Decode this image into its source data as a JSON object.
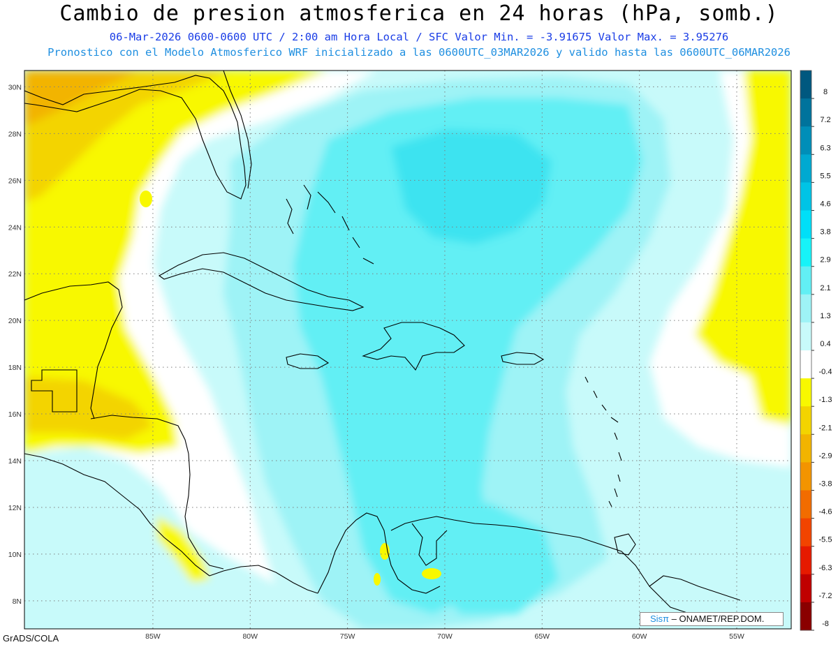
{
  "header": {
    "title": "Cambio de presion atmosferica en 24 horas (hPa, somb.)",
    "line1": "06-Mar-2026   0600-0600 UTC / 2:00 am Hora Local / SFC    Valor Min. = -3.91675  Valor Max. = 3.95276",
    "line2": "Pronostico con el Modelo Atmosferico WRF inicializado a las 0600UTC_03MAR2026 y valido hasta las  0600UTC_06MAR2026"
  },
  "map": {
    "lon_labels": [
      "85W",
      "80W",
      "75W",
      "70W",
      "65W",
      "60W",
      "55W"
    ],
    "lat_labels": [
      "30N",
      "28N",
      "26N",
      "24N",
      "22N",
      "20N",
      "18N",
      "16N",
      "14N",
      "12N",
      "10N",
      "8N"
    ],
    "extent": {
      "lon_min": -91.6,
      "lon_max": -52.2,
      "lat_min": 6.8,
      "lat_max": 30.7
    },
    "colors": {
      "zero_band": "#ffffff",
      "pos_1": "#c8fafa",
      "pos_2": "#9ef3f6",
      "pos_3": "#62eff4",
      "pos_4": "#3de3f0",
      "neg_1": "#f8f800",
      "neg_2": "#f3d400",
      "neg_3": "#f2b400",
      "neg_4": "#f39400",
      "coast": "#000000"
    }
  },
  "colorbar": {
    "labels": [
      "8",
      "7.2",
      "6.3",
      "5.5",
      "4.6",
      "3.8",
      "2.9",
      "2.1",
      "1.3",
      "0.4",
      "-0.4",
      "-1.3",
      "-2.1",
      "-2.9",
      "-3.8",
      "-4.6",
      "-5.5",
      "-6.3",
      "-7.2",
      "-8"
    ],
    "colors": [
      "#00587f",
      "#00739c",
      "#008eb8",
      "#00a9d1",
      "#00c4e6",
      "#00dff8",
      "#17f3f8",
      "#62eff4",
      "#9ef3f6",
      "#c8fafa",
      "#ffffff",
      "#f8f800",
      "#f3d400",
      "#f2b400",
      "#f39400",
      "#f26c00",
      "#f24400",
      "#e61a00",
      "#c00000",
      "#8a0000"
    ]
  },
  "footer": {
    "credit": "GrADS/COLA",
    "logo_sis": "Sisπ",
    "logo_text": " – ONAMET/REP.DOM."
  }
}
